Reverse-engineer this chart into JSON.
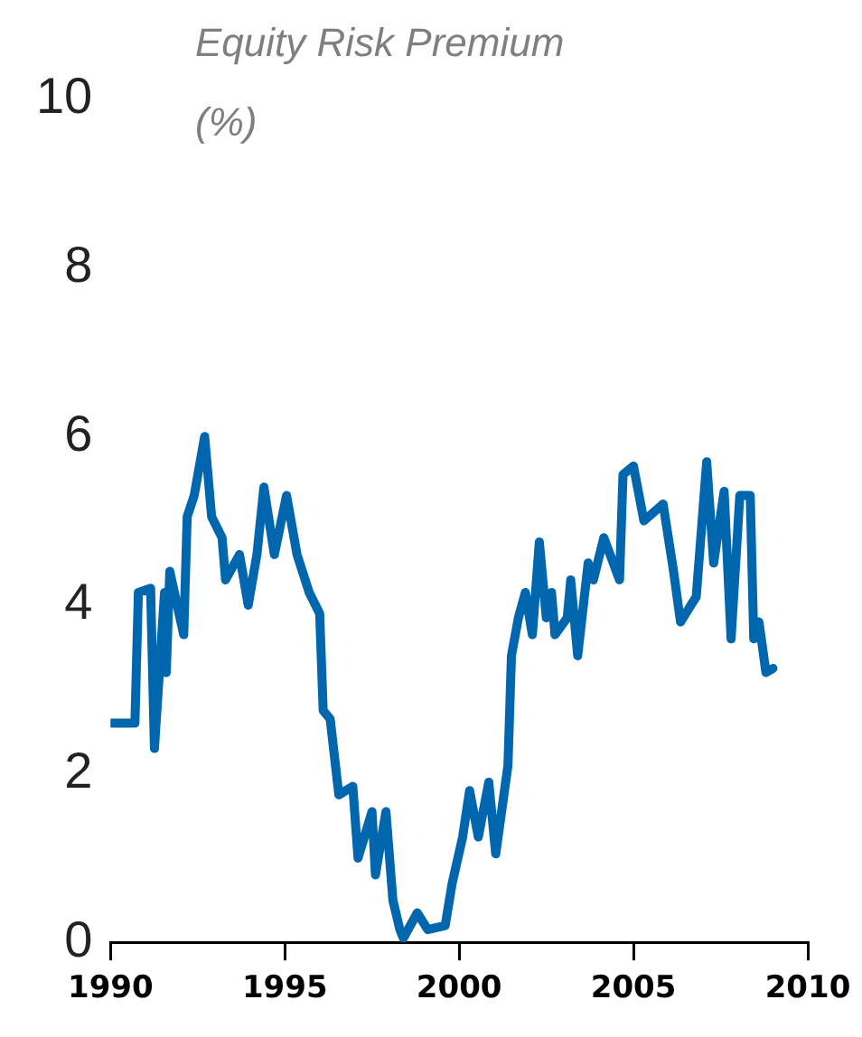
{
  "chart_data": {
    "type": "line",
    "ylabel": "Equity Risk Premium (%)",
    "xlim": [
      1990,
      2010
    ],
    "xticks": [
      1990,
      1995,
      2000,
      2005,
      2010
    ],
    "ylim": [
      0,
      10
    ],
    "yticks": [
      0,
      2,
      4,
      6,
      8,
      10
    ],
    "grid": false,
    "legend": false,
    "marker": "none",
    "line_style": "solid",
    "series": [
      {
        "color": "#0066ad",
        "x": [
          1990,
          1990.7,
          1990.8,
          1991.15,
          1991.26,
          1991.55,
          1991.6,
          1991.7,
          1992.1,
          1992.2,
          1992.4,
          1992.7,
          1992.9,
          1993.2,
          1993.3,
          1993.7,
          1993.95,
          1994.2,
          1994.4,
          1994.7,
          1995.05,
          1995.35,
          1995.7,
          1996.0,
          1996.1,
          1996.3,
          1996.55,
          1996.95,
          1997.1,
          1997.5,
          1997.6,
          1997.9,
          1998.1,
          1998.3,
          1998.4,
          1998.8,
          1999.1,
          1999.6,
          1999.8,
          2000.1,
          2000.3,
          2000.55,
          2000.85,
          2001.05,
          2001.4,
          2001.5,
          2001.7,
          2001.9,
          2002.1,
          2002.3,
          2002.5,
          2002.65,
          2002.75,
          2003.1,
          2003.2,
          2003.4,
          2003.7,
          2003.85,
          2004.15,
          2004.6,
          2004.7,
          2005.0,
          2005.3,
          2005.85,
          2006.15,
          2006.35,
          2006.8,
          2007.1,
          2007.3,
          2007.6,
          2007.8,
          2008.05,
          2008.35,
          2008.45,
          2008.6,
          2008.8,
          2009.0
        ],
        "values": [
          2.6,
          2.6,
          4.15,
          4.2,
          2.3,
          4.15,
          3.2,
          4.4,
          3.65,
          5.05,
          5.3,
          6.0,
          5.05,
          4.8,
          4.3,
          4.6,
          4.0,
          4.6,
          5.4,
          4.6,
          5.3,
          4.6,
          4.15,
          3.9,
          2.75,
          2.65,
          1.75,
          1.85,
          1.0,
          1.55,
          0.8,
          1.55,
          0.5,
          0.15,
          0.05,
          0.35,
          0.15,
          0.2,
          0.7,
          1.25,
          1.8,
          1.25,
          1.9,
          1.05,
          2.1,
          3.4,
          3.85,
          4.15,
          3.65,
          4.75,
          3.85,
          4.15,
          3.65,
          3.85,
          4.3,
          3.4,
          4.5,
          4.3,
          4.8,
          4.3,
          5.55,
          5.65,
          5.0,
          5.2,
          4.4,
          3.8,
          4.1,
          5.7,
          4.5,
          5.35,
          3.6,
          5.3,
          5.3,
          3.6,
          3.8,
          3.2,
          3.25
        ]
      }
    ]
  }
}
